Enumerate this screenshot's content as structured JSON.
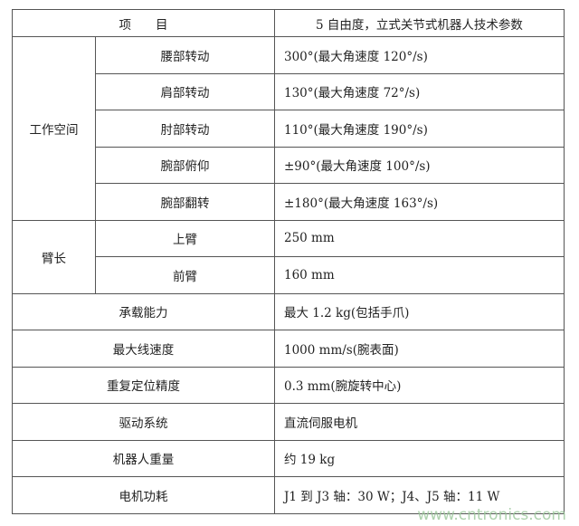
{
  "header": {
    "item": "项　　目",
    "params": "5 自由度，立式关节式机器人技术参数"
  },
  "groups": {
    "workspace": {
      "label": "工作空间",
      "rows": [
        {
          "name": "腰部转动",
          "value": "300°(最大角速度 120°/s)"
        },
        {
          "name": "肩部转动",
          "value": "130°(最大角速度 72°/s)"
        },
        {
          "name": "肘部转动",
          "value": "110°(最大角速度 190°/s)"
        },
        {
          "name": "腕部俯仰",
          "value": "±90°(最大角速度 100°/s)"
        },
        {
          "name": "腕部翻转",
          "value": "±180°(最大角速度 163°/s)"
        }
      ]
    },
    "arm": {
      "label": "臂长",
      "rows": [
        {
          "name": "上臂",
          "value": "250 mm"
        },
        {
          "name": "前臂",
          "value": "160 mm"
        }
      ]
    }
  },
  "rows": [
    {
      "name": "承载能力",
      "value": "最大 1.2 kg(包括手爪)"
    },
    {
      "name": "最大线速度",
      "value": "1000 mm/s(腕表面)"
    },
    {
      "name": "重复定位精度",
      "value": "0.3 mm(腕旋转中心)"
    },
    {
      "name": "驱动系统",
      "value": "直流伺服电机"
    },
    {
      "name": "机器人重量",
      "value": "约 19 kg"
    },
    {
      "name": "电机功耗",
      "value": "J1 到 J3 轴：30 W；J4、J5 轴：11 W"
    }
  ],
  "watermark": "www.cntronics.com"
}
